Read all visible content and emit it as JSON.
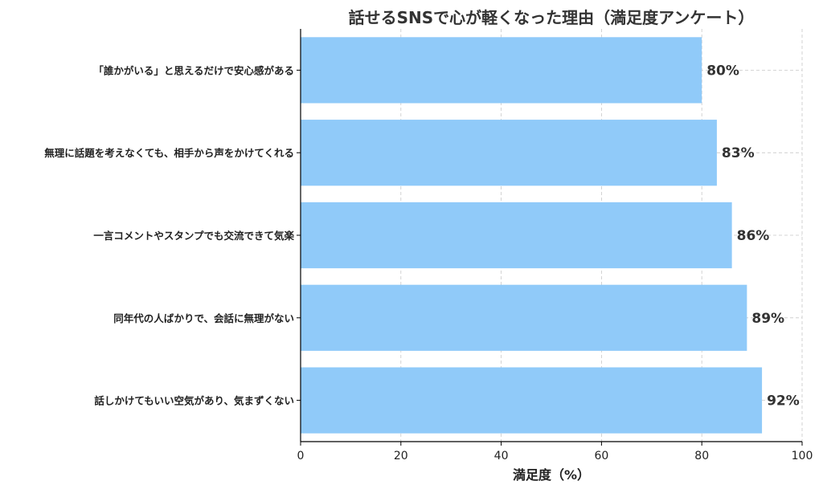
{
  "chart_data": {
    "type": "bar",
    "orientation": "horizontal",
    "title": "話せるSNSで心が軽くなった理由（満足度アンケート）",
    "xlabel": "満足度（%）",
    "ylabel": "",
    "xlim": [
      0,
      100
    ],
    "x_ticks": [
      "0",
      "20",
      "40",
      "60",
      "80",
      "100"
    ],
    "grid": true,
    "categories": [
      "「誰かがいる」と思えるだけで安心感がある",
      "無理に話題を考えなくても、相手から声をかけてくれる",
      "一言コメントやスタンプでも交流できて気楽",
      "同年代の人ばかりで、会話に無理がない",
      "話しかけてもいい空気があり、気まずくない"
    ],
    "values": [
      80,
      83,
      86,
      89,
      92
    ],
    "value_labels": [
      "80%",
      "83%",
      "86%",
      "89%",
      "92%"
    ],
    "bar_color": "#90caf9",
    "title_color": "#333333",
    "text_color": "#222222"
  }
}
